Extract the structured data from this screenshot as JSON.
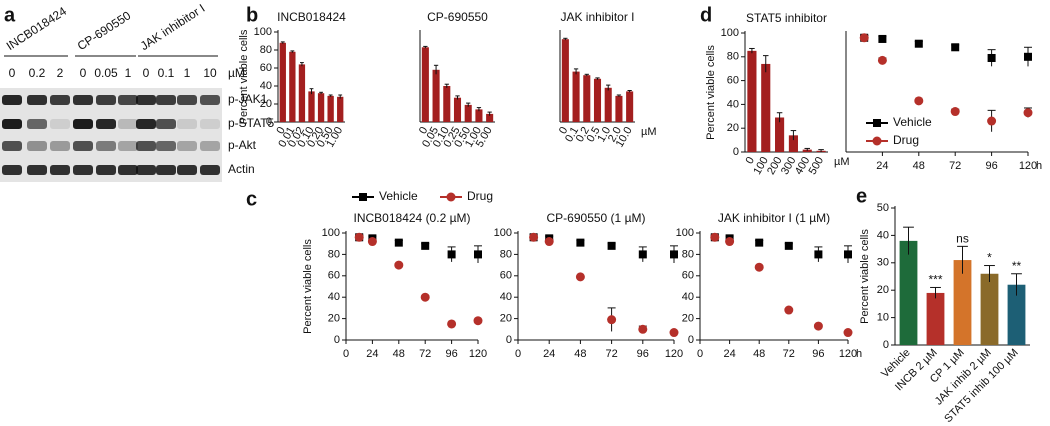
{
  "panels": [
    "a",
    "b",
    "c",
    "d",
    "e"
  ],
  "blot": {
    "groups": [
      {
        "name": "INCB018424",
        "doses": [
          "0",
          "0.2",
          "2"
        ]
      },
      {
        "name": "CP-690550",
        "doses": [
          "0",
          "0.05",
          "1"
        ]
      },
      {
        "name": "JAK inhibitor I",
        "doses": [
          "0",
          "0.1",
          "1",
          "10"
        ]
      }
    ],
    "unit": "µM",
    "proteins": [
      "p-JAK1",
      "p-STAT5",
      "p-Akt",
      "Actin"
    ]
  },
  "chart_data": [
    {
      "type": "bar",
      "title": "INCB018424",
      "ylabel": "Percent viable cells",
      "categories": [
        "0",
        "0.01",
        "0.02",
        "0.10",
        "0.20",
        "0.50",
        "1.00"
      ],
      "values": [
        88,
        78,
        64,
        34,
        32,
        29,
        28
      ],
      "errors": [
        1,
        1,
        2,
        3,
        1,
        1,
        2
      ],
      "color": "#a31f1f",
      "ylim": [
        0,
        100
      ],
      "yticks": [
        0,
        20,
        40,
        60,
        80,
        100
      ]
    },
    {
      "type": "bar",
      "title": "CP-690550",
      "categories": [
        "0",
        "0.05",
        "0.10",
        "0.25",
        "0.50",
        "1.00",
        "5.00"
      ],
      "values": [
        83,
        58,
        40,
        27,
        19,
        14,
        9
      ],
      "errors": [
        1,
        5,
        2,
        2,
        2,
        2,
        2
      ],
      "color": "#a31f1f",
      "ylim": [
        0,
        100
      ]
    },
    {
      "type": "bar",
      "title": "JAK inhibitor I",
      "categories": [
        "0",
        "0.1",
        "0.2",
        "0.5",
        "1.0",
        "2.0",
        "10.0"
      ],
      "values": [
        92,
        56,
        52,
        48,
        38,
        29,
        34
      ],
      "errors": [
        1,
        3,
        1,
        1,
        3,
        1,
        1
      ],
      "color": "#a31f1f",
      "ylim": [
        0,
        100
      ],
      "x_unit": "µM"
    },
    {
      "type": "line",
      "title": "INCB018424 (0.2 µM)",
      "ylabel": "Percent viable cells",
      "legend": true,
      "x": [
        12,
        24,
        48,
        72,
        96,
        120
      ],
      "series": [
        {
          "name": "Vehicle",
          "color": "#000000",
          "marker": "square",
          "values": [
            96,
            95,
            91,
            88,
            80,
            80
          ],
          "errors": [
            2,
            2,
            2,
            2,
            7,
            8
          ]
        },
        {
          "name": "Drug",
          "color": "#b5302a",
          "marker": "circle",
          "values": [
            96,
            92,
            70,
            40,
            15,
            18
          ],
          "errors": [
            2,
            2,
            1,
            1,
            1,
            1
          ]
        }
      ],
      "xlim": [
        0,
        120
      ],
      "xticks": [
        0,
        24,
        48,
        72,
        96,
        120
      ],
      "ylim": [
        0,
        100
      ],
      "yticks": [
        0,
        20,
        40,
        60,
        80,
        100
      ]
    },
    {
      "type": "line",
      "title": "CP-690550 (1 µM)",
      "x": [
        12,
        24,
        48,
        72,
        96,
        120
      ],
      "series": [
        {
          "color": "#000000",
          "marker": "square",
          "values": [
            96,
            95,
            91,
            88,
            80,
            80
          ],
          "errors": [
            2,
            2,
            2,
            2,
            7,
            8
          ]
        },
        {
          "color": "#b5302a",
          "marker": "circle",
          "values": [
            96,
            92,
            59,
            19,
            10,
            7
          ],
          "errors": [
            2,
            2,
            1,
            11,
            3,
            1
          ]
        }
      ],
      "xlim": [
        0,
        120
      ],
      "xticks": [
        0,
        24,
        48,
        72,
        96,
        120
      ],
      "ylim": [
        0,
        100
      ],
      "yticks": [
        0,
        20,
        40,
        60,
        80,
        100
      ]
    },
    {
      "type": "line",
      "title": "JAK inhibitor I (1 µM)",
      "x": [
        12,
        24,
        48,
        72,
        96,
        120
      ],
      "series": [
        {
          "color": "#000000",
          "marker": "square",
          "values": [
            96,
            95,
            91,
            88,
            80,
            80
          ],
          "errors": [
            2,
            2,
            2,
            2,
            7,
            8
          ]
        },
        {
          "color": "#b5302a",
          "marker": "circle",
          "values": [
            96,
            92,
            68,
            28,
            13,
            7
          ],
          "errors": [
            2,
            2,
            1,
            1,
            1,
            1
          ]
        }
      ],
      "xlim": [
        0,
        120
      ],
      "xticks": [
        0,
        24,
        48,
        72,
        96,
        120
      ],
      "ylim": [
        0,
        100
      ],
      "yticks": [
        0,
        20,
        40,
        60,
        80,
        100
      ],
      "x_unit": "h"
    },
    {
      "type": "bar",
      "title": "STAT5 inhibitor",
      "ylabel": "Percent viable cells",
      "categories": [
        "0",
        "100",
        "200",
        "300",
        "400",
        "500"
      ],
      "values": [
        85,
        74,
        29,
        14,
        2,
        1
      ],
      "errors": [
        2,
        7,
        4,
        4,
        1,
        1
      ],
      "color": "#a31f1f",
      "ylim": [
        0,
        100
      ],
      "yticks": [
        0,
        20,
        40,
        60,
        80,
        100
      ],
      "x_unit": "µM"
    },
    {
      "type": "line",
      "legend": true,
      "x": [
        12,
        24,
        48,
        72,
        96,
        120
      ],
      "series": [
        {
          "name": "Vehicle",
          "color": "#000000",
          "marker": "square",
          "values": [
            96,
            95,
            91,
            88,
            79,
            80
          ],
          "errors": [
            2,
            2,
            2,
            2,
            7,
            8
          ]
        },
        {
          "name": "Drug",
          "color": "#b5302a",
          "marker": "circle",
          "values": [
            96,
            77,
            43,
            34,
            26,
            33
          ],
          "errors": [
            2,
            2,
            1,
            2,
            9,
            4
          ]
        }
      ],
      "xlim": [
        0,
        120
      ],
      "xticks": [
        24,
        48,
        72,
        96,
        120
      ],
      "ylim": [
        0,
        100
      ],
      "x_unit": "h"
    },
    {
      "type": "bar",
      "ylabel": "Percent viable cells",
      "categories": [
        "Vehicle",
        "INCB 2 µM",
        "CP 1 µM",
        "JAK inhib 2 µM",
        "STAT5 inhib 100 µM"
      ],
      "values": [
        38,
        19,
        31,
        26,
        22
      ],
      "errors": [
        5,
        2,
        5,
        3,
        4
      ],
      "colors": [
        "#1e6b3a",
        "#b5302a",
        "#d4742a",
        "#8a6a2a",
        "#1d5f75"
      ],
      "significance": [
        null,
        "***",
        "ns",
        "*",
        "**"
      ],
      "ylim": [
        0,
        50
      ],
      "yticks": [
        0,
        10,
        20,
        30,
        40,
        50
      ]
    }
  ]
}
